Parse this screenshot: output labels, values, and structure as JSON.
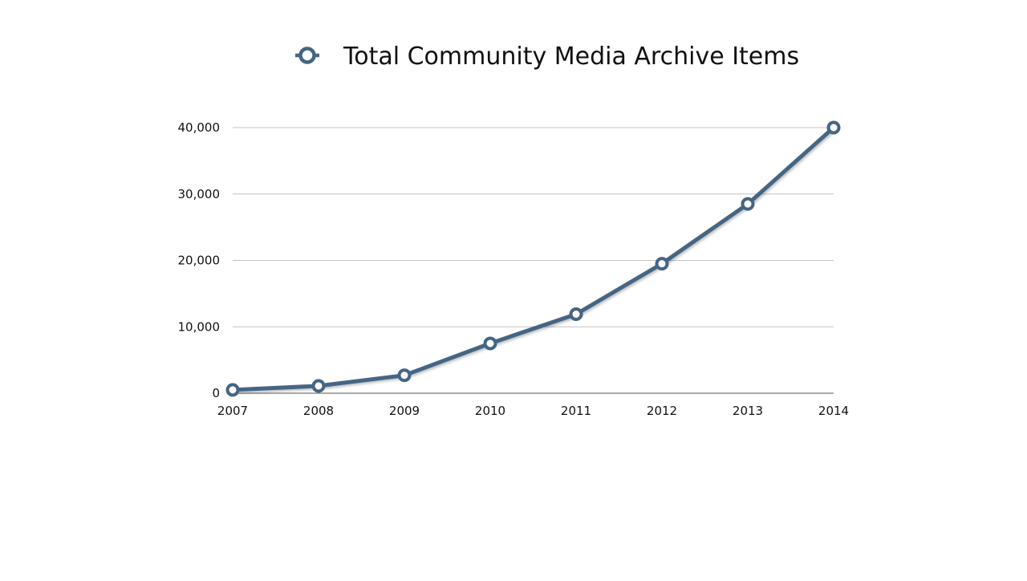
{
  "chart_data": {
    "type": "line",
    "categories": [
      "2007",
      "2008",
      "2009",
      "2010",
      "2011",
      "2012",
      "2013",
      "2014"
    ],
    "series": [
      {
        "name": "Total Community Media Archive Items",
        "values": [
          500,
          1100,
          2700,
          7500,
          11900,
          19500,
          28500,
          40000
        ],
        "color": "#456683"
      }
    ],
    "ylim": [
      0,
      40000
    ],
    "yticks": [
      0,
      10000,
      20000,
      30000,
      40000
    ],
    "ytick_labels": [
      "0",
      "10,000",
      "20,000",
      "30,000",
      "40,000"
    ],
    "grid": true,
    "legend_position": "top-center",
    "marker": "open-circle"
  }
}
